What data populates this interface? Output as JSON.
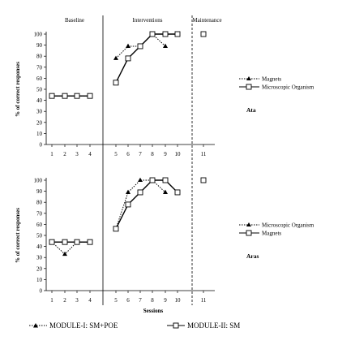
{
  "chart_data": [
    {
      "type": "line",
      "panel_label": "Ata",
      "ylabel": "% of correct responses",
      "ylim": [
        0,
        100
      ],
      "yticks": [
        "0",
        "10",
        "20",
        "30",
        "40",
        "50",
        "60",
        "70",
        "80",
        "90",
        "100"
      ],
      "xticks": [
        "1",
        "2",
        "3",
        "4",
        "5",
        "6",
        "7",
        "8",
        "9",
        "10",
        "11"
      ],
      "phases": [
        "Baseline",
        "Interventions",
        "Maintenance"
      ],
      "legend": [
        "Magnets",
        "Microscopic Organism"
      ],
      "series": [
        {
          "name": "Magnets",
          "marker": "triangle",
          "style": "dotted",
          "points": [
            [
              1,
              44
            ],
            [
              2,
              44
            ],
            [
              3,
              44
            ],
            [
              4,
              44
            ],
            [
              5,
              78
            ],
            [
              6,
              89
            ],
            [
              7,
              89
            ],
            [
              8,
              100
            ],
            [
              9,
              89
            ],
            [
              11,
              100
            ]
          ]
        },
        {
          "name": "Microscopic Organism",
          "marker": "square",
          "style": "solid",
          "points": [
            [
              1,
              44
            ],
            [
              2,
              44
            ],
            [
              3,
              44
            ],
            [
              4,
              44
            ],
            [
              5,
              56
            ],
            [
              6,
              78
            ],
            [
              7,
              89
            ],
            [
              8,
              100
            ],
            [
              9,
              100
            ],
            [
              10,
              100
            ],
            [
              11,
              100
            ]
          ]
        }
      ]
    },
    {
      "type": "line",
      "panel_label": "Aras",
      "ylabel": "% of correct responses",
      "xlabel": "Sessions",
      "ylim": [
        0,
        100
      ],
      "yticks": [
        "0",
        "10",
        "20",
        "30",
        "40",
        "50",
        "60",
        "70",
        "80",
        "90",
        "100"
      ],
      "xticks": [
        "1",
        "2",
        "3",
        "4",
        "5",
        "6",
        "7",
        "8",
        "9",
        "10",
        "11"
      ],
      "legend": [
        "Microscopic Organism",
        "Magnets"
      ],
      "series": [
        {
          "name": "Microscopic Organism",
          "marker": "triangle",
          "style": "dotted",
          "points": [
            [
              1,
              44
            ],
            [
              2,
              33
            ],
            [
              3,
              44
            ],
            [
              4,
              44
            ],
            [
              5,
              56
            ],
            [
              6,
              89
            ],
            [
              7,
              100
            ],
            [
              8,
              100
            ],
            [
              9,
              89
            ],
            [
              11,
              100
            ]
          ]
        },
        {
          "name": "Magnets",
          "marker": "square",
          "style": "solid",
          "points": [
            [
              1,
              44
            ],
            [
              2,
              44
            ],
            [
              3,
              44
            ],
            [
              4,
              44
            ],
            [
              5,
              56
            ],
            [
              6,
              78
            ],
            [
              7,
              89
            ],
            [
              8,
              100
            ],
            [
              9,
              100
            ],
            [
              10,
              89
            ],
            [
              11,
              100
            ]
          ]
        }
      ]
    }
  ],
  "bottom_legend": {
    "module1": "MODULE-I: SM+POE",
    "module2": "MODULE-II: SM"
  }
}
